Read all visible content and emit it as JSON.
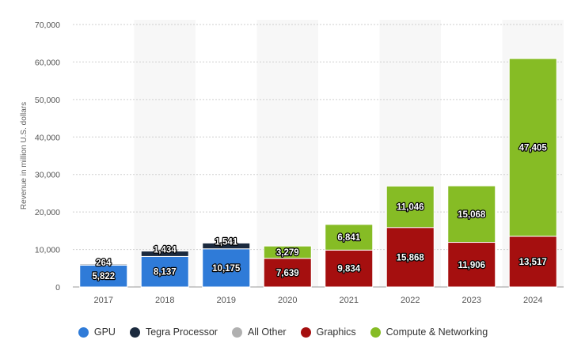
{
  "chart_data": {
    "type": "bar",
    "stacked": true,
    "title": "",
    "xlabel": "",
    "ylabel": "Revenue in million U.S. dollars",
    "ylim": [
      0,
      70000
    ],
    "y_ticks": [
      "0",
      "10,000",
      "20,000",
      "30,000",
      "40,000",
      "50,000",
      "60,000",
      "70,000"
    ],
    "y_tick_values": [
      0,
      10000,
      20000,
      30000,
      40000,
      50000,
      60000,
      70000
    ],
    "categories": [
      "2017",
      "2018",
      "2019",
      "2020",
      "2021",
      "2022",
      "2023",
      "2024"
    ],
    "series": [
      {
        "name": "GPU",
        "color": "#2f7bd8",
        "values": [
          5822,
          8137,
          10175,
          0,
          0,
          0,
          0,
          0
        ],
        "labels": [
          "5,822",
          "8,137",
          "10,175",
          "",
          "",
          "",
          "",
          ""
        ]
      },
      {
        "name": "Tegra Processor",
        "color": "#1b2a3e",
        "values": [
          264,
          1434,
          1541,
          0,
          0,
          0,
          0,
          0
        ],
        "labels": [
          "264",
          "1,434",
          "1,541",
          "",
          "",
          "",
          "",
          ""
        ]
      },
      {
        "name": "All Other",
        "color": "#b0b0b0",
        "values": [
          0,
          0,
          0,
          0,
          0,
          0,
          0,
          0
        ],
        "labels": [
          "",
          "",
          "",
          "",
          "",
          "",
          "",
          ""
        ]
      },
      {
        "name": "Graphics",
        "color": "#a50f0f",
        "values": [
          0,
          0,
          0,
          7639,
          9834,
          15868,
          11906,
          13517
        ],
        "labels": [
          "",
          "",
          "",
          "7,639",
          "9,834",
          "15,868",
          "11,906",
          "13,517"
        ]
      },
      {
        "name": "Compute & Networking",
        "color": "#86bc25",
        "values": [
          0,
          0,
          0,
          3279,
          6841,
          11046,
          15068,
          47405
        ],
        "labels": [
          "",
          "",
          "",
          "3,279",
          "6,841",
          "11,046",
          "15,068",
          "47,405"
        ]
      }
    ],
    "legend_position": "bottom",
    "grid": true
  }
}
